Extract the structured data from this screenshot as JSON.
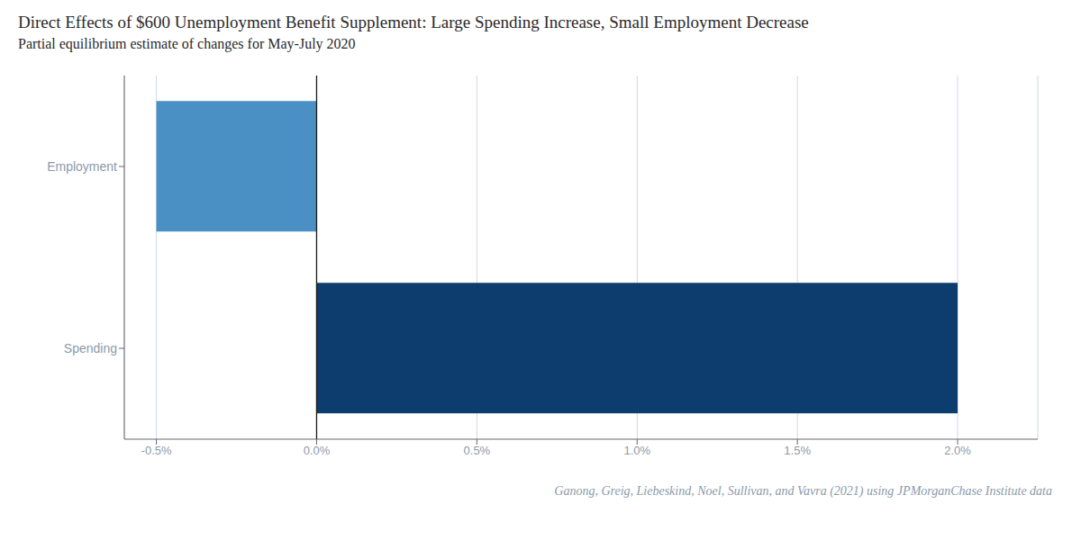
{
  "chart_data": {
    "type": "bar",
    "orientation": "horizontal",
    "title": "Direct Effects of $600 Unemployment Benefit Supplement: Large Spending Increase, Small Employment Decrease",
    "subtitle": "Partial equilibrium estimate of changes for May-July 2020",
    "caption": "Ganong, Greig, Liebeskind, Noel, Sullivan, and Vavra (2021) using JPMorganChase Institute data",
    "categories": [
      "Spending",
      "Employment"
    ],
    "values": [
      0.02,
      -0.005
    ],
    "colors": [
      "#0d3d6e",
      "#4a90c4"
    ],
    "xlim": [
      -0.006,
      0.0225
    ],
    "xticks": [
      {
        "value": -0.005,
        "label": "-0.5%"
      },
      {
        "value": 0.0,
        "label": "0.0%"
      },
      {
        "value": 0.005,
        "label": "0.5%"
      },
      {
        "value": 0.01,
        "label": "1.0%"
      },
      {
        "value": 0.015,
        "label": "1.5%"
      },
      {
        "value": 0.02,
        "label": "2.0%"
      }
    ],
    "grid": true
  }
}
